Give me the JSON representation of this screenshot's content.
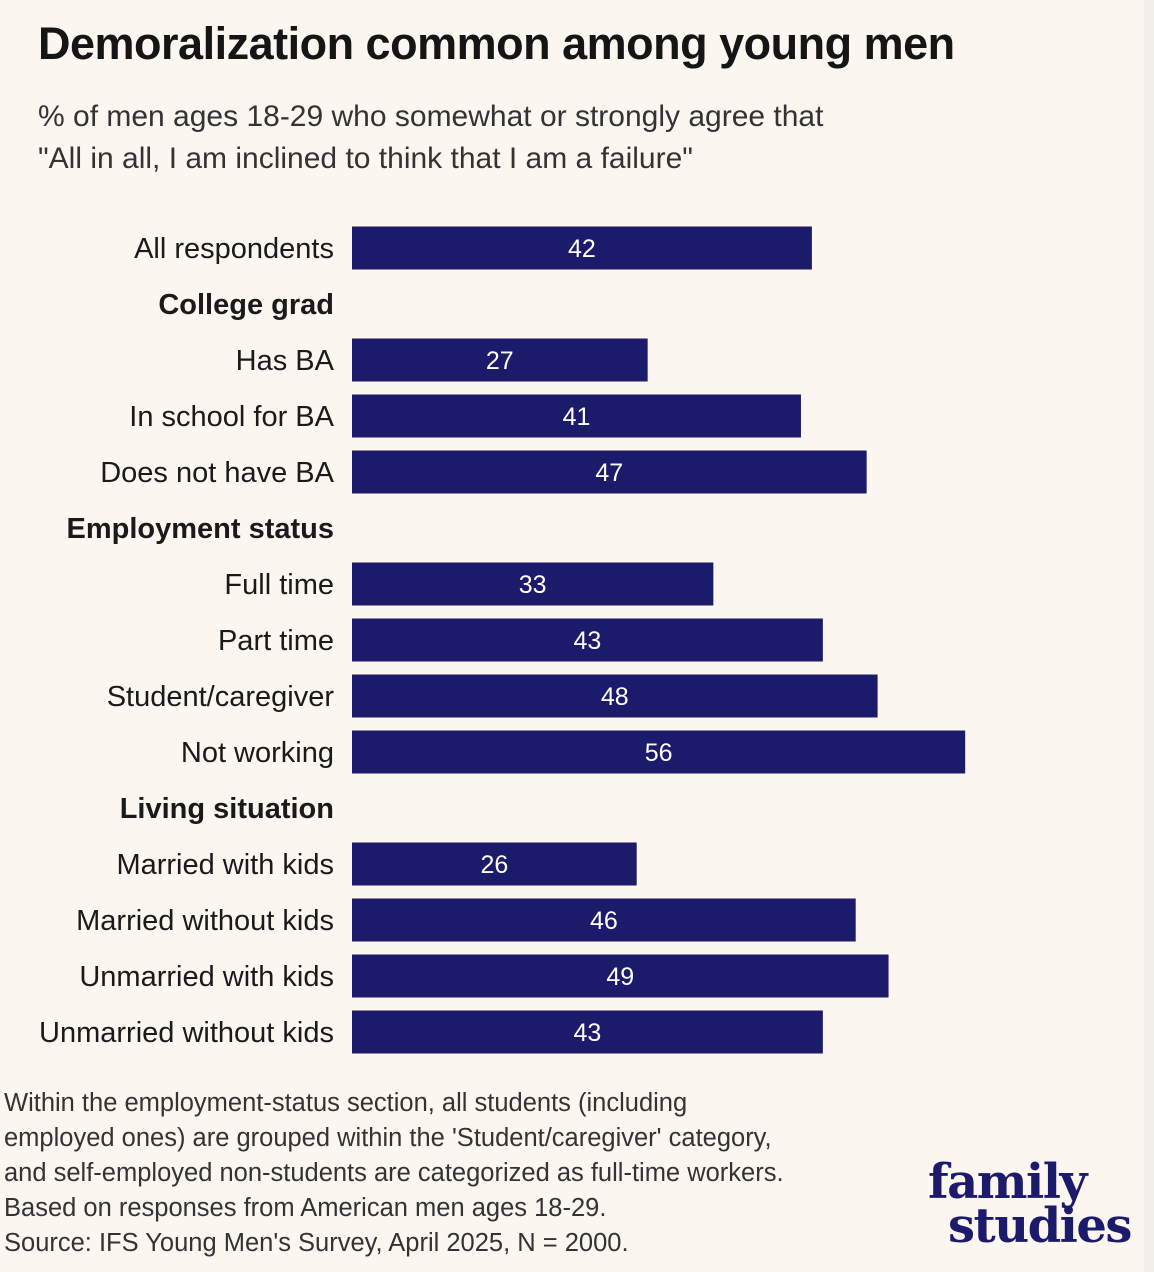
{
  "title": "Demoralization common among young men",
  "subtitle": {
    "line1": "% of men ages 18-29 who somewhat or strongly agree that",
    "line2": "\"All in all, I am inclined to think that I am a failure\""
  },
  "colors": {
    "bar": "#1c1a6b",
    "background": "#fcf6f1",
    "label_text": "#ffffff"
  },
  "chart_data": {
    "type": "bar",
    "orientation": "horizontal",
    "unit": "%",
    "xlim": [
      0,
      60
    ],
    "rows": [
      {
        "kind": "bar",
        "label": "All respondents",
        "value": 42
      },
      {
        "kind": "header",
        "label": "College grad"
      },
      {
        "kind": "bar",
        "label": "Has BA",
        "value": 27
      },
      {
        "kind": "bar",
        "label": "In school for BA",
        "value": 41
      },
      {
        "kind": "bar",
        "label": "Does not have BA",
        "value": 47
      },
      {
        "kind": "header",
        "label": "Employment status"
      },
      {
        "kind": "bar",
        "label": "Full time",
        "value": 33
      },
      {
        "kind": "bar",
        "label": "Part time",
        "value": 43
      },
      {
        "kind": "bar",
        "label": "Student/caregiver",
        "value": 48
      },
      {
        "kind": "bar",
        "label": "Not working",
        "value": 56
      },
      {
        "kind": "header",
        "label": "Living situation"
      },
      {
        "kind": "bar",
        "label": "Married with kids",
        "value": 26
      },
      {
        "kind": "bar",
        "label": "Married without kids",
        "value": 46
      },
      {
        "kind": "bar",
        "label": "Unmarried with kids",
        "value": 49
      },
      {
        "kind": "bar",
        "label": "Unmarried without kids",
        "value": 43
      }
    ]
  },
  "notes": [
    "Within the employment-status section, all students (including",
    "employed ones) are grouped within the 'Student/caregiver' category,",
    "and self-employed non-students are categorized as full-time workers.",
    "Based on responses from American men ages 18-29.",
    "Source: IFS Young Men's Survey, April 2025, N = 2000."
  ],
  "logo": {
    "line1": "family",
    "line2": "studies"
  }
}
